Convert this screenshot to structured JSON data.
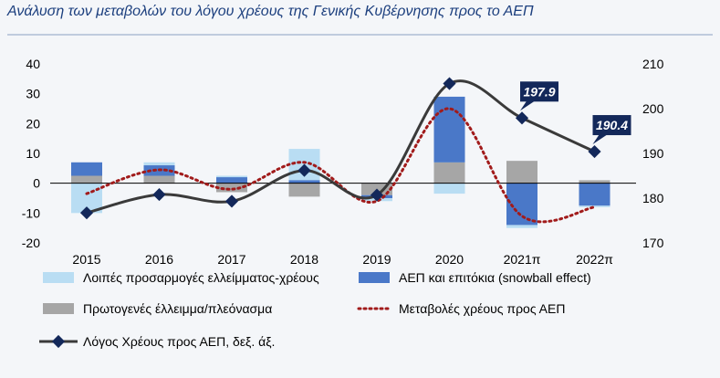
{
  "title": "Ανάλυση των μεταβολών του λόγου χρέους της Γενικής Κυβέρνησης προς το ΑΕΠ",
  "colors": {
    "title": "#1c3f7e",
    "other_adjustments": "#b9ddf3",
    "gdp_interest": "#4a78c8",
    "primary_balance": "#a6a6a6",
    "debt_change_line": "#a11b1b",
    "debt_ratio_line": "#3a3a3a",
    "marker": "#13285a",
    "callout_bg": "#13285a"
  },
  "chart_data": {
    "type": "bar",
    "categories": [
      "2015",
      "2016",
      "2017",
      "2018",
      "2019",
      "2020",
      "2021π",
      "2022π"
    ],
    "ylim": [
      -20,
      40
    ],
    "y_ticks": [
      "40",
      "30",
      "20",
      "10",
      "0",
      "-10",
      "-20"
    ],
    "y2lim": [
      170,
      210
    ],
    "y2_ticks": [
      "210",
      "200",
      "190",
      "180",
      "170"
    ],
    "series": [
      {
        "name": "Λοιπές προσαρμογές ελλείμματος-χρέους",
        "kind": "bar",
        "axis": "left",
        "segments": [
          [
            -10,
            2.5
          ],
          [
            2.5,
            7
          ],
          [
            -1.5,
            2.5
          ],
          [
            1,
            11.5
          ],
          [
            -4.5,
            -6
          ],
          [
            -3.5,
            29
          ],
          [
            -15,
            -14
          ],
          [
            -8,
            -7.5
          ]
        ]
      },
      {
        "name": "ΑΕΠ και επιτόκια (snowball effect)",
        "kind": "bar",
        "axis": "left",
        "segments": [
          [
            2.5,
            7
          ],
          [
            2.5,
            6
          ],
          [
            0,
            2
          ],
          [
            0,
            1
          ],
          [
            -4,
            -5
          ],
          [
            7,
            29
          ],
          [
            0,
            -14
          ],
          [
            0,
            -7.5
          ]
        ]
      },
      {
        "name": "Πρωτογενές έλλειμμα/πλεόνασμα",
        "kind": "bar",
        "axis": "left",
        "segments": [
          [
            0,
            2.5
          ],
          [
            0,
            5
          ],
          [
            0,
            -3
          ],
          [
            0,
            -4.5
          ],
          [
            0,
            -4
          ],
          [
            0,
            7
          ],
          [
            0,
            7.5
          ],
          [
            0,
            1
          ]
        ]
      },
      {
        "name": "Μεταβολές χρέους προς ΑΕΠ",
        "kind": "line",
        "style": "dotted",
        "axis": "left",
        "values": [
          -3.5,
          4.5,
          -2,
          7,
          -6,
          25,
          -11,
          -8
        ]
      },
      {
        "name": "Λόγος Χρέους προς ΑΕΠ, δεξ. άξ.",
        "kind": "line",
        "style": "solid-markers",
        "axis": "right",
        "values": [
          176.7,
          180.8,
          179.3,
          186.2,
          180.7,
          205.6,
          197.9,
          190.4
        ]
      }
    ],
    "annotations": [
      {
        "category": "2021π",
        "label": "197.9"
      },
      {
        "category": "2022π",
        "label": "190.4"
      }
    ],
    "legend_position": "bottom",
    "grid": false
  }
}
